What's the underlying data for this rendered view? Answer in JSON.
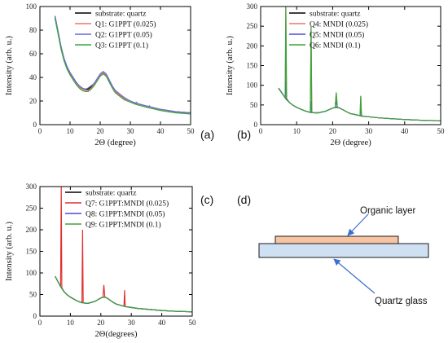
{
  "chart_data": [
    {
      "panel": "(a)",
      "type": "line",
      "xlabel": "2Θ (degree)",
      "ylabel": "Intensity (arb. u.)",
      "xlim": [
        0,
        50
      ],
      "ylim": [
        0,
        100
      ],
      "xticks": [
        0,
        10,
        20,
        30,
        40,
        50
      ],
      "yticks": [
        0,
        20,
        40,
        60,
        80,
        100
      ],
      "legend_position": "top-right",
      "series": [
        {
          "name": "substrate: quartz",
          "color": "#000000",
          "x": [
            5,
            6,
            7,
            8,
            9,
            10,
            11,
            12,
            13,
            14,
            15,
            16,
            17,
            18,
            19,
            20,
            21,
            22,
            23,
            24,
            25,
            26,
            27,
            28,
            30,
            32,
            35,
            40,
            45,
            50
          ],
          "y": [
            92,
            79,
            66,
            56,
            49,
            44,
            40,
            36,
            33,
            31,
            30,
            30,
            32,
            34,
            38,
            42,
            44,
            42,
            37,
            32,
            28,
            26,
            24,
            22,
            20,
            18,
            16,
            13,
            11,
            10
          ]
        },
        {
          "name": "Q1: G1PPT  (0.025)",
          "color": "#e8776b",
          "x": [
            5,
            6,
            7,
            8,
            9,
            10,
            11,
            12,
            13,
            14,
            15,
            16,
            17,
            18,
            19,
            20,
            21,
            22,
            23,
            24,
            25,
            26,
            27,
            28,
            30,
            32,
            35,
            40,
            45,
            50
          ],
          "y": [
            91,
            78,
            65,
            55,
            48,
            43,
            39,
            35,
            32,
            30,
            29,
            29,
            31,
            34,
            38,
            42,
            44,
            42,
            37,
            32,
            28,
            26,
            24,
            22,
            20,
            18,
            16,
            13,
            11,
            10
          ]
        },
        {
          "name": "Q2: G1PPT  (0.05)",
          "color": "#6b6bd8",
          "x": [
            5,
            6,
            7,
            8,
            9,
            10,
            11,
            12,
            13,
            14,
            15,
            16,
            17,
            18,
            19,
            20,
            21,
            22,
            23,
            24,
            25,
            26,
            27,
            28,
            30,
            31.7,
            32,
            32.3,
            35,
            36,
            36.3,
            36.6,
            40,
            45,
            50
          ],
          "y": [
            92,
            79,
            66,
            56,
            49,
            44,
            40,
            36,
            33,
            31,
            30,
            31,
            33,
            35,
            39,
            43,
            45,
            43,
            38,
            33,
            29,
            27,
            25,
            23,
            20,
            18,
            19,
            18,
            16,
            15,
            16,
            15,
            13,
            11,
            10
          ]
        },
        {
          "name": "Q3: G1PPT  (0.1)",
          "color": "#3aa53a",
          "x": [
            5,
            6,
            7,
            8,
            9,
            10,
            11,
            12,
            13,
            14,
            15,
            16,
            17,
            18,
            19,
            20,
            21,
            22,
            23,
            24,
            25,
            26,
            27,
            28,
            30,
            32,
            35,
            40,
            45,
            50
          ],
          "y": [
            90,
            77,
            64,
            54,
            47,
            42,
            38,
            34,
            31,
            29,
            28,
            28,
            30,
            33,
            37,
            41,
            43,
            41,
            36,
            31,
            27,
            25,
            23,
            21,
            19,
            17,
            15,
            12,
            10,
            9
          ]
        }
      ]
    },
    {
      "panel": "(b)",
      "type": "line",
      "xlabel": "2Θ (degree)",
      "ylabel": "Intensity (arb. u.)",
      "xlim": [
        0,
        50
      ],
      "ylim": [
        0,
        300
      ],
      "xticks": [
        0,
        10,
        20,
        30,
        40,
        50
      ],
      "yticks": [
        0,
        50,
        100,
        150,
        200,
        250,
        300
      ],
      "legend_position": "top-right",
      "series": [
        {
          "name": "substrate: quartz",
          "color": "#000000",
          "x": [
            5,
            6,
            7,
            8,
            9,
            10,
            11,
            12,
            13,
            14,
            15,
            16,
            17,
            18,
            19,
            20,
            21,
            22,
            23,
            24,
            25,
            26,
            27,
            28,
            30,
            32,
            35,
            40,
            45,
            50
          ],
          "y": [
            92,
            79,
            66,
            56,
            49,
            44,
            40,
            36,
            33,
            31,
            30,
            30,
            32,
            34,
            38,
            42,
            44,
            42,
            37,
            32,
            28,
            26,
            24,
            22,
            20,
            18,
            16,
            13,
            11,
            10
          ]
        },
        {
          "name": "Q4: MNDI  (0.025)",
          "color": "#e8776b",
          "x": [
            5,
            6,
            6.8,
            7,
            7.2,
            8,
            9,
            10,
            11,
            12,
            13,
            13.8,
            14,
            14.2,
            15,
            16,
            17,
            18,
            19,
            20,
            20.7,
            21,
            21.3,
            22,
            23,
            24,
            25,
            26,
            27,
            27.6,
            27.8,
            28,
            30,
            32,
            35,
            40,
            45,
            50
          ],
          "y": [
            92,
            79,
            68,
            300,
            66,
            56,
            49,
            44,
            40,
            36,
            33,
            31,
            250,
            31,
            30,
            30,
            32,
            34,
            38,
            42,
            44,
            80,
            44,
            42,
            37,
            32,
            28,
            26,
            24,
            23,
            72,
            22,
            20,
            18,
            16,
            13,
            11,
            10
          ]
        },
        {
          "name": "Q5: MNDI  (0.05)",
          "color": "#4b4bd8",
          "x": [
            5,
            6,
            6.8,
            7,
            7.2,
            8,
            9,
            10,
            11,
            12,
            13,
            13.8,
            14,
            14.2,
            15,
            16,
            17,
            18,
            19,
            20,
            20.7,
            21,
            21.3,
            22,
            23,
            24,
            25,
            26,
            27,
            27.6,
            27.8,
            28,
            30,
            32,
            35,
            40,
            45,
            50
          ],
          "y": [
            92,
            79,
            68,
            110,
            66,
            56,
            49,
            44,
            40,
            36,
            33,
            31,
            60,
            31,
            30,
            30,
            32,
            34,
            38,
            42,
            44,
            60,
            44,
            42,
            37,
            32,
            28,
            26,
            24,
            23,
            40,
            22,
            20,
            18,
            16,
            13,
            11,
            10
          ]
        },
        {
          "name": "Q6: MNDI  (0.1)",
          "color": "#3aa53a",
          "x": [
            5,
            6,
            6.8,
            7,
            7.2,
            8,
            9,
            10,
            11,
            12,
            13,
            13.8,
            14,
            14.2,
            15,
            16,
            17,
            18,
            19,
            20,
            20.7,
            21,
            21.3,
            22,
            23,
            24,
            25,
            26,
            27,
            27.6,
            27.8,
            28,
            30,
            32,
            35,
            40,
            45,
            50
          ],
          "y": [
            93,
            80,
            68,
            300,
            66,
            56,
            49,
            44,
            40,
            36,
            33,
            31,
            250,
            31,
            30,
            30,
            32,
            34,
            38,
            42,
            44,
            82,
            44,
            42,
            37,
            32,
            28,
            26,
            24,
            23,
            73,
            22,
            20,
            18,
            16,
            13,
            11,
            10
          ]
        }
      ]
    },
    {
      "panel": "(c)",
      "type": "line",
      "xlabel": "2Θ(degrees)",
      "ylabel": "Intensity (arb. u.)",
      "xlim": [
        0,
        50
      ],
      "ylim": [
        0,
        300
      ],
      "xticks": [
        0,
        10,
        20,
        30,
        40,
        50
      ],
      "yticks": [
        0,
        50,
        100,
        150,
        200,
        250,
        300
      ],
      "legend_position": "top-right",
      "series": [
        {
          "name": "substrate: quartz",
          "color": "#000000",
          "x": [
            5,
            6,
            7,
            8,
            9,
            10,
            11,
            12,
            13,
            14,
            15,
            16,
            17,
            18,
            19,
            20,
            21,
            22,
            23,
            24,
            25,
            26,
            27,
            28,
            30,
            32,
            35,
            40,
            45,
            50
          ],
          "y": [
            92,
            79,
            66,
            56,
            49,
            44,
            40,
            36,
            33,
            31,
            30,
            30,
            32,
            34,
            38,
            42,
            44,
            42,
            37,
            32,
            28,
            26,
            24,
            22,
            20,
            18,
            16,
            13,
            11,
            10
          ]
        },
        {
          "name": "Q7: G1PPT:MNDI (0.025)",
          "color": "#e03030",
          "x": [
            5,
            6,
            6.8,
            7,
            7.2,
            8,
            9,
            10,
            11,
            12,
            13,
            13.8,
            14,
            14.2,
            15,
            16,
            17,
            18,
            19,
            20,
            20.7,
            21,
            21.3,
            22,
            23,
            24,
            25,
            26,
            27,
            27.6,
            27.8,
            28,
            30,
            32,
            35,
            40,
            45,
            50
          ],
          "y": [
            92,
            79,
            68,
            300,
            66,
            56,
            49,
            44,
            40,
            36,
            33,
            31,
            200,
            31,
            30,
            30,
            32,
            34,
            38,
            42,
            44,
            72,
            44,
            42,
            37,
            32,
            28,
            26,
            24,
            23,
            60,
            22,
            20,
            18,
            16,
            13,
            11,
            10
          ]
        },
        {
          "name": "Q8: G1PPT:MNDI (0.05)",
          "color": "#4b4bd8",
          "x": [
            5,
            6,
            7,
            8,
            9,
            10,
            11,
            12,
            13,
            14,
            15,
            16,
            17,
            18,
            19,
            20,
            21,
            22,
            23,
            24,
            25,
            26,
            27,
            28,
            30,
            32,
            35,
            40,
            45,
            50
          ],
          "y": [
            92,
            79,
            66,
            56,
            49,
            44,
            40,
            36,
            33,
            31,
            30,
            30,
            32,
            34,
            38,
            42,
            44,
            42,
            37,
            32,
            28,
            26,
            24,
            22,
            20,
            18,
            16,
            13,
            11,
            10
          ]
        },
        {
          "name": "Q9: G1PPT:MNDI (0.1)",
          "color": "#3aa53a",
          "x": [
            5,
            6,
            7,
            8,
            9,
            10,
            11,
            12,
            13,
            14,
            15,
            16,
            17,
            18,
            19,
            20,
            21,
            22,
            23,
            24,
            25,
            26,
            27,
            28,
            30,
            32,
            35,
            40,
            45,
            50
          ],
          "y": [
            92,
            79,
            66,
            56,
            49,
            44,
            40,
            36,
            33,
            31,
            30,
            30,
            32,
            34,
            38,
            42,
            44,
            42,
            37,
            32,
            28,
            26,
            24,
            22,
            20,
            18,
            16,
            13,
            11,
            10
          ]
        }
      ]
    }
  ],
  "diagram": {
    "panel": "(d)",
    "organic_label": "Organic layer",
    "quartz_label": "Quartz glass",
    "organic_color": "#f6c4a0",
    "quartz_color": "#cfe0f3",
    "arrow_color": "#3b6fd0"
  }
}
